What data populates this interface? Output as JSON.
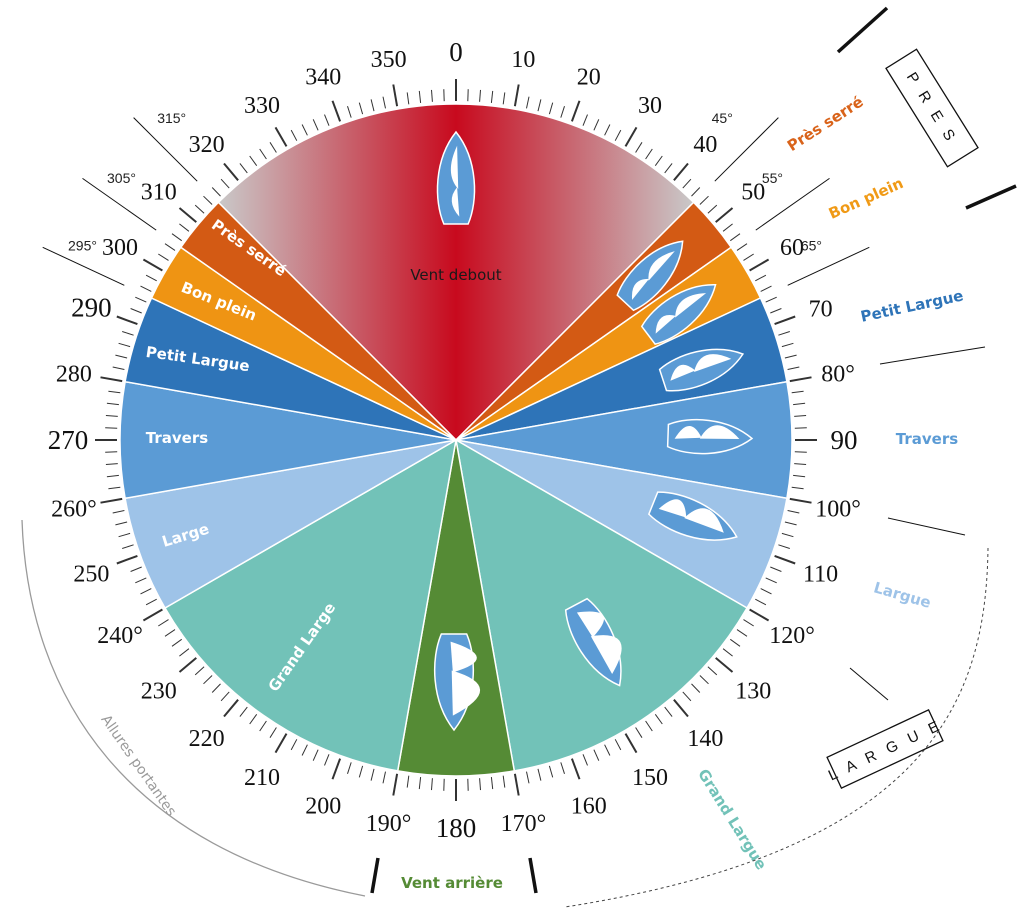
{
  "degree_labels": [
    "0",
    "10",
    "20",
    "30",
    "40",
    "50",
    "60",
    "70",
    "80°",
    "90",
    "100°",
    "110",
    "120°",
    "130",
    "140",
    "150",
    "160",
    "170°",
    "180",
    "190°",
    "200",
    "210",
    "220",
    "230",
    "240°",
    "250",
    "260°",
    "270",
    "280",
    "290",
    "300",
    "310",
    "320",
    "330",
    "340",
    "350"
  ],
  "boundary_labels": [
    "45°",
    "55°",
    "65°",
    "315°",
    "305°",
    "295°"
  ],
  "sector_labels": {
    "vent_debout": "Vent debout",
    "pres_serre": "Près serré",
    "bon_plein": "Bon plein",
    "petit_largue": "Petit Largue",
    "travers": "Travers",
    "large": "Large",
    "grand_large": "Grand Large"
  },
  "side_labels": {
    "pres_serre": "Près serré",
    "bon_plein": "Bon plein",
    "petit_largue": "Petit Largue",
    "travers": "Travers",
    "largue": "Largue",
    "grand_largue": "Grand Largue",
    "vent_arriere": "Vent arrière",
    "allures_portantes": "Allures portantes"
  },
  "boxes": {
    "pres": "P R E S",
    "largue": "L A R G U E"
  },
  "colors": {
    "vent_debout": "#c80a1e",
    "vent_debout_edge": "#bfbfbf",
    "pres_serre": "#d35a14",
    "bon_plein": "#ef9413",
    "petit_largue": "#2e74b8",
    "travers": "#5b9bd5",
    "large": "#9ec3e8",
    "grand_large": "#72c2b8",
    "vent_arriere": "#558b35",
    "boat": "#5b9bd5",
    "label_pres_serre": "#d9631a",
    "label_bon_plein": "#f09a16",
    "label_petit_largue": "#2e74b8",
    "label_travers": "#5b9bd5",
    "label_largue": "#9ec3e8",
    "label_grand_largue": "#72c2b8",
    "label_vent_arriere": "#558b35"
  }
}
